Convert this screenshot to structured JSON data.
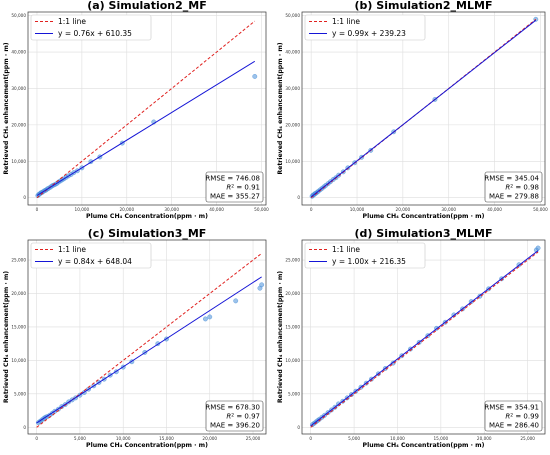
{
  "colors": {
    "fit_line": "#1515d6",
    "ref_line": "#e0211f",
    "points": "#4a90d9",
    "grid": "#dedede"
  },
  "chart_data": [
    {
      "type": "scatter",
      "title": "(a) Simulation2_MF",
      "xlabel": "Plume CH₄ Concentration(ppm · m)",
      "ylabel": "Retrieved CH₄ enhancement(ppm · m)",
      "xlim": [
        -2000,
        51000
      ],
      "ylim": [
        -2000,
        51000
      ],
      "xticks": [
        0,
        10000,
        20000,
        30000,
        40000,
        50000
      ],
      "yticks": [
        0,
        10000,
        20000,
        30000,
        40000,
        50000
      ],
      "grid": true,
      "legend_position": "top-left",
      "legend": [
        "1:1 line",
        "y = 0.76x + 610.35"
      ],
      "fit": {
        "slope": 0.76,
        "intercept": 610.35
      },
      "stats": {
        "rmse": "RMSE = 746.08",
        "r2": "= 0.91",
        "mae": "MAE = 355.27"
      },
      "points": [
        [
          200,
          600
        ],
        [
          400,
          900
        ],
        [
          600,
          1000
        ],
        [
          800,
          1300
        ],
        [
          1000,
          1400
        ],
        [
          1200,
          1500
        ],
        [
          1500,
          1800
        ],
        [
          1800,
          2000
        ],
        [
          2000,
          2100
        ],
        [
          2300,
          2400
        ],
        [
          2600,
          2600
        ],
        [
          3000,
          2900
        ],
        [
          3300,
          3200
        ],
        [
          3600,
          3400
        ],
        [
          4000,
          3600
        ],
        [
          4400,
          3900
        ],
        [
          4800,
          4300
        ],
        [
          5200,
          4600
        ],
        [
          5600,
          4900
        ],
        [
          6000,
          5200
        ],
        [
          6500,
          5600
        ],
        [
          7000,
          6000
        ],
        [
          7600,
          6400
        ],
        [
          8200,
          6900
        ],
        [
          9000,
          7400
        ],
        [
          10000,
          8200
        ],
        [
          12000,
          9900
        ],
        [
          14000,
          11200
        ],
        [
          19000,
          15000
        ],
        [
          26000,
          20800
        ],
        [
          48500,
          33300
        ]
      ]
    },
    {
      "type": "scatter",
      "title": "(b) Simulation2_MLMF",
      "xlabel": "Plume CH₄ Concentration(ppm · m)",
      "ylabel": "Retrieved CH₄ enhancement(ppm · m)",
      "xlim": [
        -2000,
        51000
      ],
      "ylim": [
        -2000,
        51000
      ],
      "xticks": [
        0,
        10000,
        20000,
        30000,
        40000,
        50000
      ],
      "yticks": [
        0,
        10000,
        20000,
        30000,
        40000,
        50000
      ],
      "grid": true,
      "legend_position": "top-left",
      "legend": [
        "1:1 line",
        "y = 0.99x + 239.23"
      ],
      "fit": {
        "slope": 0.99,
        "intercept": 239.23
      },
      "stats": {
        "rmse": "RMSE = 345.04",
        "r2": "= 0.98",
        "mae": "MAE = 279.88"
      },
      "points": [
        [
          200,
          400
        ],
        [
          400,
          700
        ],
        [
          600,
          800
        ],
        [
          800,
          1100
        ],
        [
          1000,
          1200
        ],
        [
          1300,
          1500
        ],
        [
          1600,
          1800
        ],
        [
          2000,
          2200
        ],
        [
          2400,
          2600
        ],
        [
          2800,
          3000
        ],
        [
          3200,
          3400
        ],
        [
          3700,
          3900
        ],
        [
          4200,
          4400
        ],
        [
          4800,
          5000
        ],
        [
          5400,
          5500
        ],
        [
          6000,
          6200
        ],
        [
          7000,
          7100
        ],
        [
          8000,
          8200
        ],
        [
          9500,
          9600
        ],
        [
          11000,
          11100
        ],
        [
          13000,
          13000
        ],
        [
          18000,
          18100
        ],
        [
          27000,
          27000
        ],
        [
          49000,
          49000
        ]
      ]
    },
    {
      "type": "scatter",
      "title": "(c) Simulation3_MF",
      "xlabel": "Plume CH₄ Concentration(ppm · m)",
      "ylabel": "Retrieved CH₄ enhancement(ppm · m)",
      "xlim": [
        -1000,
        26500
      ],
      "ylim": [
        -1000,
        28000
      ],
      "xticks": [
        0,
        5000,
        10000,
        15000,
        20000,
        25000
      ],
      "yticks": [
        0,
        5000,
        10000,
        15000,
        20000,
        25000
      ],
      "grid": true,
      "legend_position": "top-left",
      "legend": [
        "1:1 line",
        "y = 0.84x + 648.04"
      ],
      "fit": {
        "slope": 0.84,
        "intercept": 648.04
      },
      "stats": {
        "rmse": "RMSE = 678.30",
        "r2": "= 0.97",
        "mae": "MAE = 396.20"
      },
      "points": [
        [
          200,
          700
        ],
        [
          400,
          900
        ],
        [
          600,
          1100
        ],
        [
          800,
          1300
        ],
        [
          1000,
          1500
        ],
        [
          1200,
          1600
        ],
        [
          1500,
          1800
        ],
        [
          1800,
          2100
        ],
        [
          2100,
          2400
        ],
        [
          2500,
          2700
        ],
        [
          2900,
          3100
        ],
        [
          3300,
          3400
        ],
        [
          3700,
          3800
        ],
        [
          4100,
          4100
        ],
        [
          4500,
          4400
        ],
        [
          5000,
          4800
        ],
        [
          5500,
          5200
        ],
        [
          6000,
          5700
        ],
        [
          6600,
          6200
        ],
        [
          7200,
          6700
        ],
        [
          7800,
          7200
        ],
        [
          8500,
          7800
        ],
        [
          9200,
          8300
        ],
        [
          10000,
          9000
        ],
        [
          11000,
          9800
        ],
        [
          12500,
          11200
        ],
        [
          14000,
          12500
        ],
        [
          15000,
          13200
        ],
        [
          19500,
          16200
        ],
        [
          20000,
          16500
        ],
        [
          23000,
          18900
        ],
        [
          25800,
          20800
        ],
        [
          26000,
          21300
        ]
      ]
    },
    {
      "type": "scatter",
      "title": "(d) Simulation3_MLMF",
      "xlabel": "Plume CH₄ Concentration(ppm · m)",
      "ylabel": "Retrieved CH₄ enhancement(ppm · m)",
      "xlim": [
        -1000,
        27000
      ],
      "ylim": [
        -1000,
        28000
      ],
      "xticks": [
        0,
        5000,
        10000,
        15000,
        20000,
        25000
      ],
      "yticks": [
        0,
        5000,
        10000,
        15000,
        20000,
        25000
      ],
      "grid": true,
      "legend_position": "top-left",
      "legend": [
        "1:1 line",
        "y = 1.00x + 216.35"
      ],
      "fit": {
        "slope": 1.0,
        "intercept": 216.35
      },
      "stats": {
        "rmse": "RMSE = 354.91",
        "r2": "= 0.99",
        "mae": "MAE = 286.40"
      },
      "points": [
        [
          200,
          400
        ],
        [
          400,
          600
        ],
        [
          600,
          800
        ],
        [
          800,
          1000
        ],
        [
          1000,
          1200
        ],
        [
          1300,
          1500
        ],
        [
          1600,
          1800
        ],
        [
          2000,
          2200
        ],
        [
          2400,
          2600
        ],
        [
          2800,
          3000
        ],
        [
          3200,
          3500
        ],
        [
          3700,
          3900
        ],
        [
          4200,
          4400
        ],
        [
          4700,
          4900
        ],
        [
          5200,
          5400
        ],
        [
          5800,
          6000
        ],
        [
          6400,
          6600
        ],
        [
          7000,
          7200
        ],
        [
          7800,
          8000
        ],
        [
          8600,
          8800
        ],
        [
          9500,
          9600
        ],
        [
          10500,
          10700
        ],
        [
          11500,
          11700
        ],
        [
          12500,
          12700
        ],
        [
          13500,
          13700
        ],
        [
          14500,
          14800
        ],
        [
          15500,
          15700
        ],
        [
          16500,
          16800
        ],
        [
          17500,
          17700
        ],
        [
          18500,
          18800
        ],
        [
          19500,
          19600
        ],
        [
          20500,
          20700
        ],
        [
          22000,
          22200
        ],
        [
          24000,
          24300
        ],
        [
          26000,
          26500
        ],
        [
          26200,
          26800
        ]
      ]
    }
  ]
}
